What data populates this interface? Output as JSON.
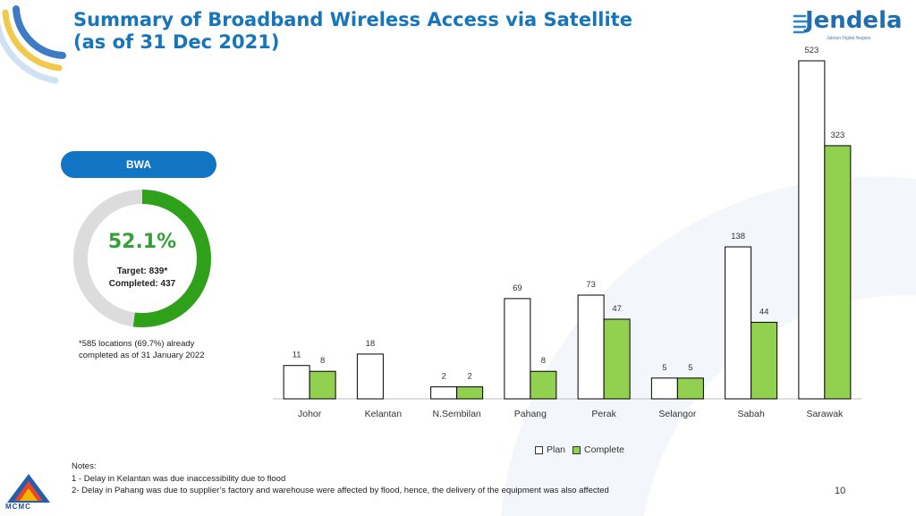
{
  "header": {
    "title_line1": "Summary of Broadband Wireless Access via Satellite",
    "title_line2": "(as of 31 Dec 2021)"
  },
  "logo": {
    "name": "Jendela",
    "tagline": "Jalinan Digital Negara"
  },
  "bwa_panel": {
    "label": "BWA",
    "percent": "52.1%",
    "completed_fraction": 0.521,
    "target_text": "Target: 839*",
    "completed_text": "Completed: 437",
    "footnote_line1": "*585 locations (69.7%) already",
    "footnote_line2": "completed as of 31 January 2022",
    "colors": {
      "progress": "#2ea01a",
      "remaining": "#dcdcdc",
      "pill": "#1175c3"
    }
  },
  "chart_data": {
    "type": "bar",
    "categories": [
      "Johor",
      "Kelantan",
      "N.Sembilan",
      "Pahang",
      "Perak",
      "Selangor",
      "Sabah",
      "Sarawak"
    ],
    "series": [
      {
        "name": "Plan",
        "values": [
          11,
          18,
          2,
          69,
          73,
          5,
          138,
          523
        ],
        "color": "#ffffff"
      },
      {
        "name": "Complete",
        "values": [
          8,
          null,
          2,
          8,
          47,
          5,
          44,
          323
        ],
        "color": "#92d050"
      }
    ],
    "data_labels": [
      [
        "11",
        "18",
        "2",
        "69",
        "73",
        "5",
        "138",
        "523"
      ],
      [
        "8",
        "",
        "2",
        "8",
        "47",
        "5",
        "44",
        "323"
      ]
    ],
    "legend_position": "bottom",
    "grid": false,
    "note": "bar heights not drawn to a single linear scale in original"
  },
  "legend": {
    "plan": "Plan",
    "complete": "Complete"
  },
  "notes": {
    "heading": "Notes:",
    "line1": "1 - Delay in Kelantan was due inaccessibility due to  flood",
    "line2": "2- Delay in Pahang was due to supplier’s factory and warehouse were affected by flood, hence, the delivery of the equipment was also affected"
  },
  "page_number": "10",
  "mcmc_logo": {
    "name": "MCMC"
  }
}
